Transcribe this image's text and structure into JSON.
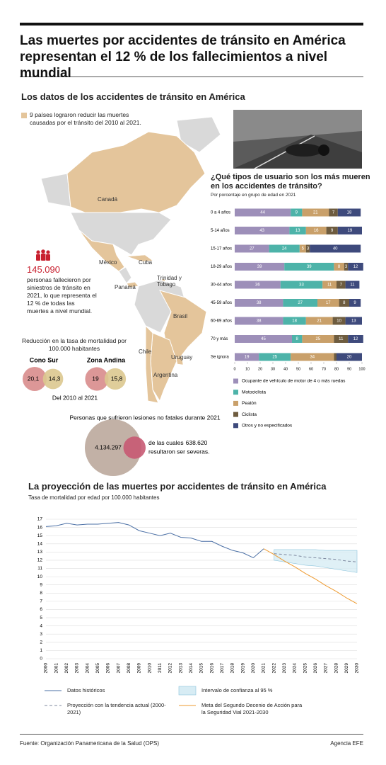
{
  "header": {
    "title": "Las muertes por accidentes de tránsito en América representan el 12 % de los fallecimientos a nivel mundial"
  },
  "section1": {
    "title": "Los datos de los accidentes de tránsito en América",
    "map_legend": "9 países lograron reducir las muertes causadas por el tránsito del 2010 al 2021.",
    "map_labels": [
      "Canadá",
      "México",
      "Cuba",
      "Panamá",
      "Trinidad y Tobago",
      "Brasil",
      "Chile",
      "Uruguay",
      "Argentina"
    ]
  },
  "deaths": {
    "value": "145.090",
    "text": "personas fallecieron por siniestros de tránsito en 2021, lo que representa el 12 % de todas las muertes a nivel mundial."
  },
  "section2": {
    "title": "La proyección de las muertes por accidentes de tránsito en América",
    "subtitle": "Tasa de mortalidad por edad por 100.000 habitantes"
  },
  "chart_data": [
    {
      "type": "stacked-bar-horizontal",
      "title": "¿Qué tipos de usuario son los más mueren en los accidentes de tránsito?",
      "subtitle": "Por porcentaje en grupo de edad en 2021",
      "categories": [
        "0 a 4 años",
        "5-14 años",
        "15-17 años",
        "18-29 años",
        "30-44 años",
        "45-59 años",
        "60-69 años",
        "70 y más",
        "Se ignora"
      ],
      "series": [
        {
          "name": "Ocupante de vehículo de motor de 4 o más ruedas",
          "color": "#9d8fb9",
          "values": [
            44,
            43,
            27,
            39,
            36,
            38,
            38,
            45,
            19
          ]
        },
        {
          "name": "Motociclista",
          "color": "#4db3a9",
          "values": [
            9,
            13,
            24,
            39,
            33,
            27,
            18,
            8,
            25
          ]
        },
        {
          "name": "Peatón",
          "color": "#c9a06a",
          "values": [
            21,
            16,
            5,
            8,
            11,
            17,
            21,
            25,
            34
          ]
        },
        {
          "name": "Ciclista",
          "color": "#6e5c3f",
          "values": [
            7,
            9,
            3,
            3,
            7,
            8,
            10,
            11,
            2
          ]
        },
        {
          "name": "Otros y no especificados",
          "color": "#3e4a7c",
          "values": [
            18,
            19,
            40,
            12,
            11,
            9,
            13,
            12,
            20
          ]
        }
      ],
      "xlim": [
        0,
        100
      ],
      "xticks": [
        0,
        10,
        20,
        30,
        40,
        50,
        60,
        70,
        80,
        90,
        100
      ]
    },
    {
      "type": "bubble-pair",
      "title": "Reducción en la tasa de mortalidad por 100.000 habitantes",
      "groups": [
        {
          "name": "Cono Sur",
          "values": [
            20.1,
            14.3
          ],
          "value_labels": [
            "20,1",
            "14,3"
          ]
        },
        {
          "name": "Zona Andina",
          "values": [
            19,
            15.8
          ],
          "value_labels": [
            "19",
            "15,8"
          ]
        }
      ],
      "colors": [
        "#d88c8c",
        "#dcc88f"
      ],
      "note": "Del 2010 al 2021"
    },
    {
      "type": "bubble-nested",
      "title": "Personas que sufrieron lesiones no fatales durante 2021",
      "values": [
        4134297,
        638620
      ],
      "value_labels": [
        "4.134.297",
        "638.620"
      ],
      "colors": [
        "#c2b1a6",
        "#c85a73"
      ],
      "caption_before": "de las cuales",
      "caption_after": "resultaron ser severas."
    },
    {
      "type": "line",
      "x": [
        2000,
        2001,
        2002,
        2003,
        2004,
        2005,
        2006,
        2007,
        2008,
        2009,
        2010,
        2011,
        2012,
        2013,
        2014,
        2015,
        2016,
        2017,
        2018,
        2019,
        2020,
        2021,
        2022,
        2023,
        2024,
        2025,
        2026,
        2027,
        2028,
        2029,
        2030
      ],
      "xlim": [
        2000,
        2030
      ],
      "ylim": [
        0,
        17
      ],
      "yticks": [
        0,
        1,
        2,
        3,
        4,
        5,
        6,
        7,
        8,
        9,
        10,
        11,
        12,
        13,
        14,
        15,
        16,
        17
      ],
      "grid": true,
      "series": [
        {
          "name": "Datos históricos",
          "kind": "line",
          "color": "#4a6fa5",
          "values": [
            16.1,
            16.2,
            16.5,
            16.3,
            16.4,
            16.4,
            16.5,
            16.6,
            16.3,
            15.6,
            15.3,
            15.0,
            15.3,
            14.8,
            14.7,
            14.3,
            14.3,
            13.7,
            13.2,
            12.9,
            12.3,
            13.4,
            null,
            null,
            null,
            null,
            null,
            null,
            null,
            null,
            null
          ]
        },
        {
          "name": "Intervalo de confianza al 95 %",
          "kind": "band",
          "color": "#8cc4dc",
          "upper": [
            null,
            null,
            null,
            null,
            null,
            null,
            null,
            null,
            null,
            null,
            null,
            null,
            null,
            null,
            null,
            null,
            null,
            null,
            null,
            null,
            null,
            null,
            13.3,
            13.3,
            13.3,
            13.3,
            13.3,
            13.2,
            13.2,
            13.2,
            13.2
          ],
          "lower": [
            null,
            null,
            null,
            null,
            null,
            null,
            null,
            null,
            null,
            null,
            null,
            null,
            null,
            null,
            null,
            null,
            null,
            null,
            null,
            null,
            null,
            null,
            12.0,
            11.8,
            11.6,
            11.4,
            11.3,
            11.1,
            10.9,
            10.7,
            10.5
          ]
        },
        {
          "name": "Proyección con la tendencia actual (2000-2021)",
          "kind": "line",
          "dashed": true,
          "color": "#7c879e",
          "values": [
            null,
            null,
            null,
            null,
            null,
            null,
            null,
            null,
            null,
            null,
            null,
            null,
            null,
            null,
            null,
            null,
            null,
            null,
            null,
            null,
            null,
            null,
            12.8,
            12.7,
            12.6,
            12.4,
            12.3,
            12.2,
            12.1,
            11.9,
            11.8
          ]
        },
        {
          "name": "Meta del Segundo Decenio de Acción para la Seguridad Vial 2021-2030",
          "kind": "line",
          "color": "#ee9a2f",
          "values": [
            null,
            null,
            null,
            null,
            null,
            null,
            null,
            null,
            null,
            null,
            null,
            null,
            null,
            null,
            null,
            null,
            null,
            null,
            null,
            null,
            null,
            13.4,
            12.7,
            11.9,
            11.2,
            10.4,
            9.7,
            8.9,
            8.2,
            7.4,
            6.7
          ]
        }
      ]
    }
  ],
  "footer": {
    "source": "Fuente: Organización Panamericana de la Salud (OPS)",
    "agency": "Agencia EFE"
  }
}
